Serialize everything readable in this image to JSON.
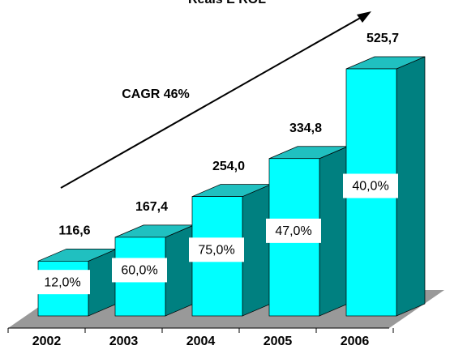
{
  "chart_data": {
    "type": "bar3d",
    "title": "Reais E ROL",
    "categories": [
      "2002",
      "2003",
      "2004",
      "2005",
      "2006"
    ],
    "values": [
      116.6,
      167.4,
      254.0,
      334.8,
      525.7
    ],
    "value_labels": [
      "116,6",
      "167,4",
      "254,0",
      "334,8",
      "525,7"
    ],
    "bar_labels": [
      "12,0%",
      "60,0%",
      "75,0%",
      "47,0%",
      "40,0%"
    ],
    "annotation": "CAGR 46%",
    "color": "#00ffff"
  }
}
